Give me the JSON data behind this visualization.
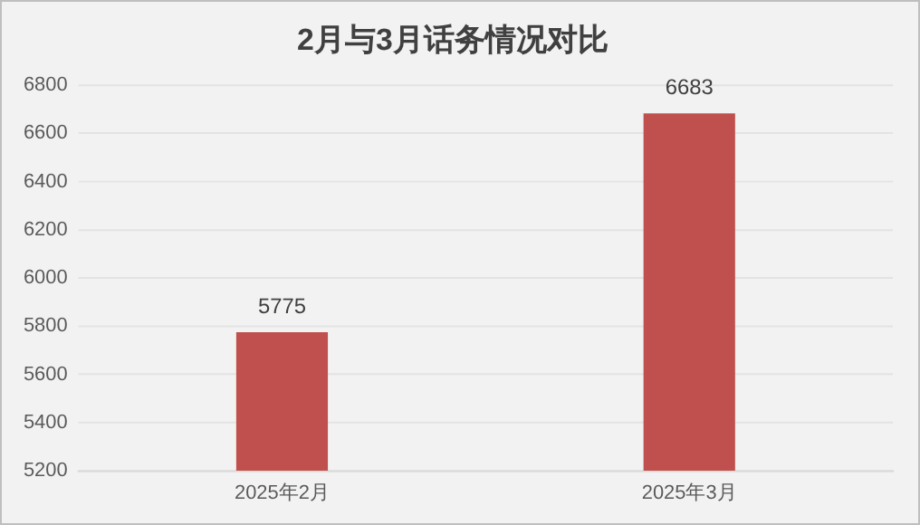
{
  "chart_data": {
    "type": "bar",
    "title": "2月与3月话务情况对比",
    "categories": [
      "2025年2月",
      "2025年3月"
    ],
    "values": [
      5775,
      6683
    ],
    "color": "#c0504d",
    "ylim": [
      5200,
      6800
    ],
    "yticks": [
      5200,
      5400,
      5600,
      5800,
      6000,
      6200,
      6400,
      6600,
      6800
    ],
    "grid": "y",
    "data_labels": true
  }
}
